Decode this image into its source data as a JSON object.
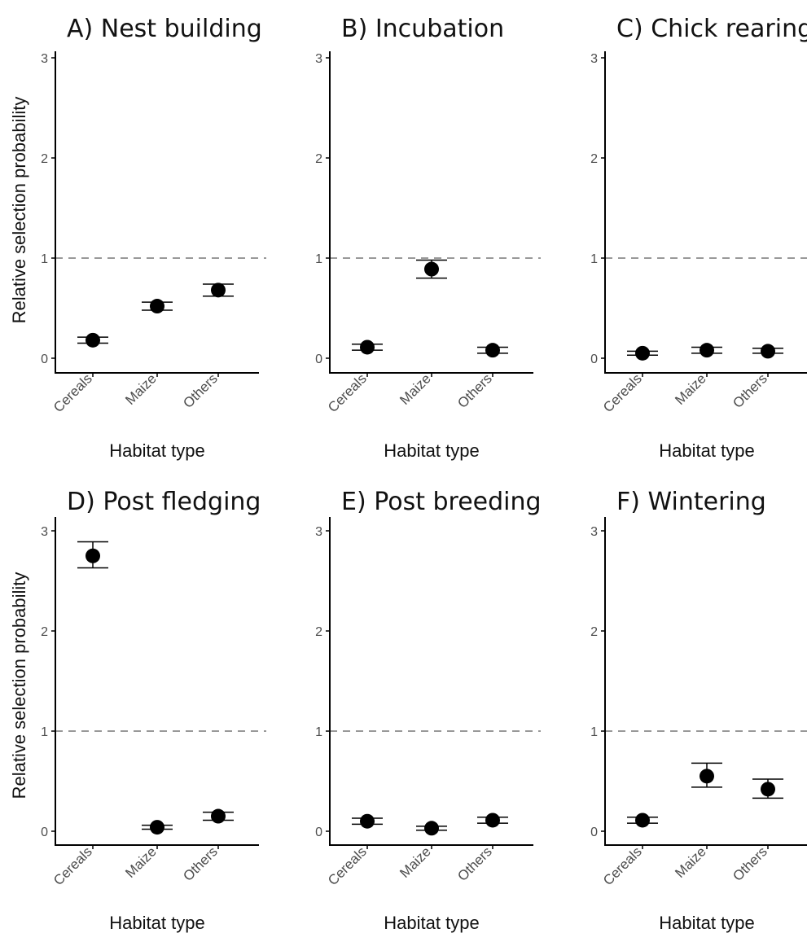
{
  "chart_data": [
    {
      "type": "scatter",
      "title": "A) Nest building",
      "xlabel": "Habitat type",
      "ylabel": "Relative selection probability",
      "categories": [
        "Cereals",
        "Maize",
        "Others"
      ],
      "values": [
        0.18,
        0.52,
        0.68
      ],
      "error_low": [
        0.15,
        0.48,
        0.62
      ],
      "error_high": [
        0.21,
        0.56,
        0.74
      ],
      "ylim": [
        0,
        3
      ],
      "yticks": [
        "0",
        "1",
        "2",
        "3"
      ],
      "reference_line": 1,
      "grid": false
    },
    {
      "type": "scatter",
      "title": "B) Incubation",
      "xlabel": "Habitat type",
      "ylabel": "",
      "categories": [
        "Cereals",
        "Maize",
        "Others"
      ],
      "values": [
        0.11,
        0.89,
        0.08
      ],
      "error_low": [
        0.08,
        0.8,
        0.05
      ],
      "error_high": [
        0.14,
        0.98,
        0.11
      ],
      "ylim": [
        0,
        3
      ],
      "yticks": [
        "0",
        "1",
        "2",
        "3"
      ],
      "reference_line": 1,
      "grid": false
    },
    {
      "type": "scatter",
      "title": "C) Chick rearing",
      "xlabel": "Habitat type",
      "ylabel": "",
      "categories": [
        "Cereals",
        "Maize",
        "Others"
      ],
      "values": [
        0.05,
        0.08,
        0.07
      ],
      "error_low": [
        0.03,
        0.05,
        0.05
      ],
      "error_high": [
        0.07,
        0.11,
        0.1
      ],
      "ylim": [
        0,
        3
      ],
      "yticks": [
        "0",
        "1",
        "2",
        "3"
      ],
      "reference_line": 1,
      "grid": false
    },
    {
      "type": "scatter",
      "title": "D) Post fledging",
      "xlabel": "Habitat type",
      "ylabel": "Relative selection probability",
      "categories": [
        "Cereals",
        "Maize",
        "Others"
      ],
      "values": [
        2.75,
        0.04,
        0.15
      ],
      "error_low": [
        2.63,
        0.02,
        0.11
      ],
      "error_high": [
        2.89,
        0.06,
        0.19
      ],
      "ylim": [
        0,
        3
      ],
      "yticks": [
        "0",
        "1",
        "2",
        "3"
      ],
      "reference_line": 1,
      "grid": false
    },
    {
      "type": "scatter",
      "title": "E) Post breeding",
      "xlabel": "Habitat type",
      "ylabel": "",
      "categories": [
        "Cereals",
        "Maize",
        "Others"
      ],
      "values": [
        0.1,
        0.03,
        0.11
      ],
      "error_low": [
        0.07,
        0.01,
        0.08
      ],
      "error_high": [
        0.13,
        0.05,
        0.14
      ],
      "ylim": [
        0,
        3
      ],
      "yticks": [
        "0",
        "1",
        "2",
        "3"
      ],
      "reference_line": 1,
      "grid": false
    },
    {
      "type": "scatter",
      "title": "F) Wintering",
      "xlabel": "Habitat type",
      "ylabel": "",
      "categories": [
        "Cereals",
        "Maize",
        "Others"
      ],
      "values": [
        0.11,
        0.55,
        0.42
      ],
      "error_low": [
        0.08,
        0.44,
        0.33
      ],
      "error_high": [
        0.14,
        0.68,
        0.52
      ],
      "ylim": [
        0,
        3
      ],
      "yticks": [
        "0",
        "1",
        "2",
        "3"
      ],
      "reference_line": 1,
      "grid": false
    }
  ],
  "colors": {
    "point": "#000000",
    "axis": "#000000",
    "reference_line": "#999999",
    "tick_text": "#4d4d4d"
  }
}
